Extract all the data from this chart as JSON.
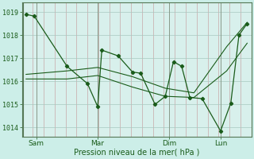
{
  "background_color": "#cceee8",
  "plot_bg_color": "#d8f0ec",
  "grid_color_h": "#b0d8d0",
  "grid_color_v": "#c8a0a0",
  "line_color": "#1a5c1a",
  "marker_color": "#1a5c1a",
  "yticks": [
    1014,
    1015,
    1016,
    1017,
    1018,
    1019
  ],
  "ylim": [
    1013.6,
    1019.4
  ],
  "xtick_labels": [
    "Sam",
    "Mar",
    "Dim",
    "Lun"
  ],
  "xtick_positions": [
    0.5,
    3.5,
    7.0,
    9.5
  ],
  "xlim": [
    -0.2,
    11.0
  ],
  "xlabel": "Pression niveau de la mer( hPa )",
  "series1_x": [
    0.0,
    0.4,
    2.0,
    3.0,
    3.5,
    3.7,
    4.5,
    5.2,
    5.6,
    6.3,
    6.8,
    7.2,
    7.6,
    8.0,
    8.6,
    9.5,
    10.0,
    10.4,
    10.8
  ],
  "series1_y": [
    1018.9,
    1018.82,
    1016.65,
    1015.9,
    1014.9,
    1017.35,
    1017.1,
    1016.4,
    1016.35,
    1015.0,
    1015.35,
    1016.85,
    1016.65,
    1015.3,
    1015.25,
    1013.85,
    1015.05,
    1018.0,
    1018.5
  ],
  "series2_x": [
    0.0,
    2.0,
    3.5,
    5.2,
    6.8,
    8.2,
    9.8,
    10.8
  ],
  "series2_y": [
    1016.3,
    1016.45,
    1016.6,
    1016.2,
    1015.7,
    1015.5,
    1017.5,
    1018.55
  ],
  "series3_x": [
    0.0,
    2.0,
    3.5,
    5.2,
    6.8,
    8.2,
    9.8,
    10.8
  ],
  "series3_y": [
    1016.1,
    1016.1,
    1016.25,
    1015.75,
    1015.35,
    1015.3,
    1016.45,
    1017.65
  ],
  "n_vgrid": 22,
  "n_hgrid": 6
}
